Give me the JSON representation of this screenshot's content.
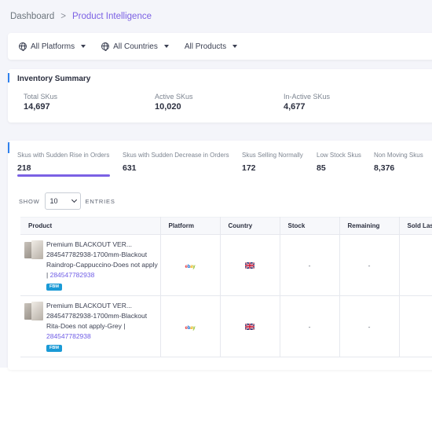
{
  "breadcrumb": {
    "root": "Dashboard",
    "separator": ">",
    "current": "Product Intelligence"
  },
  "filters": [
    {
      "label": "All Platforms",
      "icon": "globe-icon"
    },
    {
      "label": "All Countries",
      "icon": "globe-icon"
    },
    {
      "label": "All Products",
      "icon": ""
    }
  ],
  "inventory": {
    "title": "Inventory Summary",
    "stats": [
      {
        "label": "Total SKus",
        "value": "14,697"
      },
      {
        "label": "Active SKus",
        "value": "10,020"
      },
      {
        "label": "In-Active SKus",
        "value": "4,677"
      }
    ]
  },
  "tabs": [
    {
      "label": "Skus with Sudden Rise in Orders",
      "value": "218",
      "active": true
    },
    {
      "label": "Skus with Sudden Decrease in Orders",
      "value": "631"
    },
    {
      "label": "Skus Selling Normally",
      "value": "172"
    },
    {
      "label": "Low Stock Skus",
      "value": "85"
    },
    {
      "label": "Non Moving Skus",
      "value": "8,376"
    }
  ],
  "entries": {
    "show_label": "SHOW",
    "value": "10",
    "entries_label": "ENTRIES"
  },
  "table": {
    "columns": [
      "Product",
      "Platform",
      "Country",
      "Stock",
      "Remaining",
      "Sold Last"
    ],
    "rows": [
      {
        "title": "Premium BLACKOUT VER...",
        "desc": "284547782938-1700mm-Blackout Raindrop-Cappuccino-Does not apply |",
        "sku": "284547782938",
        "badge": "FBM",
        "platform": "ebay",
        "stock": "-",
        "remaining": "-"
      },
      {
        "title": "Premium BLACKOUT VER...",
        "desc": "284547782938-1700mm-Blackout Rita-Does not apply-Grey |",
        "sku": "284547782938",
        "badge": "FBM",
        "platform": "ebay",
        "stock": "-",
        "remaining": "-"
      }
    ]
  },
  "colors": {
    "accent": "#7b61e4",
    "link": "#6f5de6",
    "badge": "#1a9ad6",
    "marker": "#2f80ed"
  }
}
